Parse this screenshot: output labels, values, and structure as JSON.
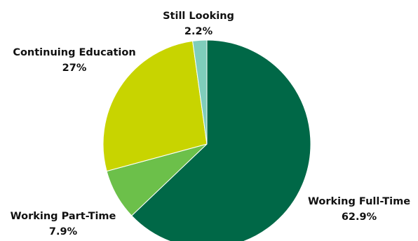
{
  "chart_data": {
    "type": "pie",
    "title": "",
    "unit": "%",
    "slices": [
      {
        "name": "Working Full-Time",
        "value": 62.9,
        "label": "62.9%",
        "color": "#006847"
      },
      {
        "name": "Working Part-Time",
        "value": 7.9,
        "label": "7.9%",
        "color": "#6cc04a"
      },
      {
        "name": "Continuing Education",
        "value": 27,
        "label": "27%",
        "color": "#c8d400"
      },
      {
        "name": "Still Looking",
        "value": 2.2,
        "label": "2.2%",
        "color": "#7fcdbb"
      }
    ],
    "start_angle_deg": 0,
    "direction": "clockwise",
    "legend": "none"
  }
}
